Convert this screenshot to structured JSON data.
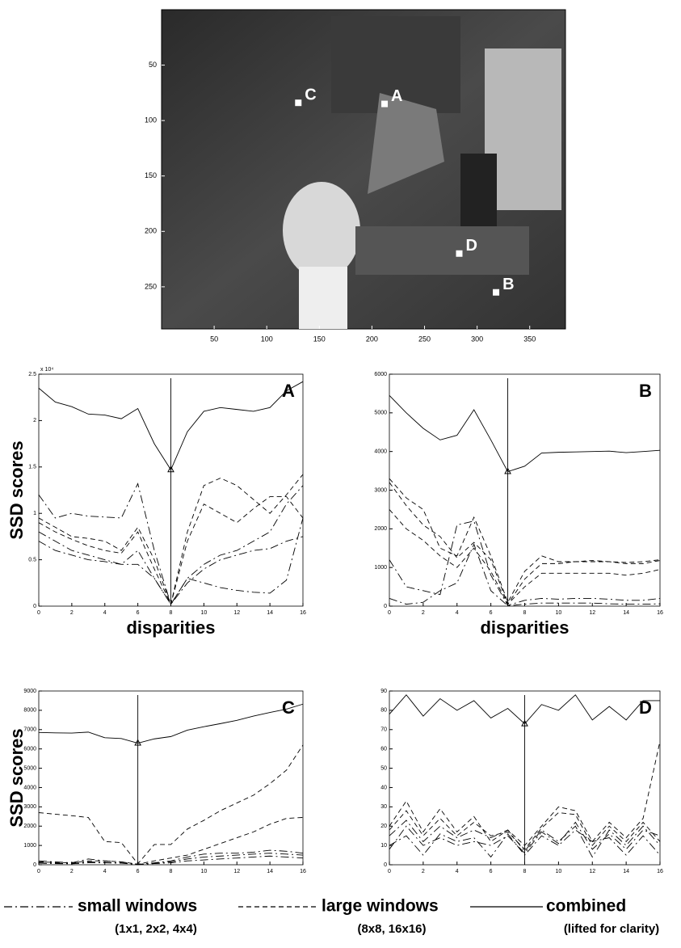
{
  "chart_data": [
    {
      "type": "image",
      "xlim": [
        0,
        384
      ],
      "ylim": [
        288,
        0
      ],
      "xticks": [
        50,
        100,
        150,
        200,
        250,
        300,
        350
      ],
      "yticks": [
        50,
        100,
        150,
        200,
        250
      ],
      "points": {
        "labels": [
          "C",
          "A",
          "D",
          "B"
        ],
        "x": [
          130,
          212,
          283,
          318
        ],
        "y": [
          84,
          85,
          220,
          255
        ]
      }
    },
    {
      "type": "line",
      "panel_label": "A",
      "y_label": "SSD scores",
      "x_label": "disparities",
      "scale_label": "x 10⁴",
      "xlim": [
        0,
        16
      ],
      "xticks": [
        0,
        2,
        4,
        6,
        8,
        10,
        12,
        14,
        16
      ],
      "ylim": [
        0,
        2.5
      ],
      "yticks": [
        0,
        0.5,
        1,
        1.5,
        2,
        2.5
      ],
      "selected_x": 8,
      "x": [
        0,
        1,
        2,
        3,
        4,
        5,
        6,
        7,
        8,
        9,
        10,
        11,
        12,
        13,
        14,
        15,
        16
      ],
      "series": [
        {
          "style": "solid",
          "values": [
            2.35,
            2.2,
            2.15,
            2.07,
            2.06,
            2.02,
            2.13,
            1.75,
            1.47,
            1.88,
            2.1,
            2.14,
            2.12,
            2.1,
            2.14,
            2.32,
            2.42
          ]
        },
        {
          "style": "dashed",
          "values": [
            0.95,
            0.85,
            0.75,
            0.73,
            0.7,
            0.6,
            0.85,
            0.5,
            0.02,
            0.8,
            1.3,
            1.38,
            1.3,
            1.15,
            1.0,
            1.2,
            1.42
          ]
        },
        {
          "style": "dashed",
          "values": [
            0.9,
            0.8,
            0.72,
            0.65,
            0.6,
            0.57,
            0.8,
            0.4,
            0.02,
            0.7,
            1.1,
            1.0,
            0.9,
            1.05,
            1.18,
            1.18,
            0.95
          ]
        },
        {
          "style": "dashdot",
          "values": [
            1.2,
            0.95,
            1.0,
            0.97,
            0.96,
            0.95,
            1.32,
            0.6,
            0.02,
            0.3,
            0.25,
            0.2,
            0.17,
            0.15,
            0.14,
            0.28,
            0.95
          ]
        },
        {
          "style": "dashdot",
          "values": [
            0.8,
            0.7,
            0.6,
            0.55,
            0.5,
            0.45,
            0.6,
            0.3,
            0.02,
            0.3,
            0.45,
            0.55,
            0.6,
            0.7,
            0.8,
            1.1,
            1.3
          ]
        },
        {
          "style": "dashdot",
          "values": [
            0.7,
            0.6,
            0.55,
            0.5,
            0.48,
            0.45,
            0.45,
            0.3,
            0.02,
            0.25,
            0.4,
            0.5,
            0.55,
            0.6,
            0.62,
            0.7,
            0.75
          ]
        }
      ]
    },
    {
      "type": "line",
      "panel_label": "B",
      "x_label": "disparities",
      "xlim": [
        0,
        16
      ],
      "xticks": [
        0,
        2,
        4,
        6,
        8,
        10,
        12,
        14,
        16
      ],
      "ylim": [
        0,
        6000
      ],
      "yticks": [
        0,
        1000,
        2000,
        3000,
        4000,
        5000,
        6000
      ],
      "selected_x": 7,
      "x": [
        0,
        1,
        2,
        3,
        4,
        5,
        6,
        7,
        8,
        9,
        10,
        11,
        12,
        13,
        14,
        15,
        16
      ],
      "series": [
        {
          "style": "solid",
          "values": [
            5450,
            5000,
            4600,
            4300,
            4420,
            5080,
            4300,
            3480,
            3620,
            3960,
            3980,
            3990,
            4000,
            4010,
            3970,
            4000,
            4030
          ]
        },
        {
          "style": "dashed",
          "values": [
            3300,
            2800,
            2500,
            1500,
            1300,
            2300,
            1300,
            100,
            900,
            1300,
            1150,
            1150,
            1180,
            1150,
            1130,
            1150,
            1200
          ]
        },
        {
          "style": "dashed",
          "values": [
            3200,
            2600,
            2100,
            1800,
            1250,
            1650,
            1200,
            50,
            700,
            1100,
            1100,
            1150,
            1150,
            1150,
            1100,
            1100,
            1180
          ]
        },
        {
          "style": "dashed",
          "values": [
            2500,
            2000,
            1700,
            1300,
            1000,
            1500,
            900,
            50,
            500,
            850,
            850,
            850,
            850,
            850,
            800,
            850,
            950
          ]
        },
        {
          "style": "dashdot",
          "values": [
            1200,
            500,
            400,
            300,
            2100,
            2200,
            800,
            20,
            150,
            200,
            180,
            200,
            200,
            180,
            150,
            150,
            200
          ]
        },
        {
          "style": "dashdot",
          "values": [
            200,
            50,
            100,
            400,
            600,
            1600,
            400,
            10,
            50,
            80,
            80,
            80,
            80,
            60,
            50,
            50,
            60
          ]
        }
      ]
    },
    {
      "type": "line",
      "panel_label": "C",
      "y_label": "SSD scores",
      "xlim": [
        0,
        16
      ],
      "xticks": [
        0,
        2,
        4,
        6,
        8,
        10,
        12,
        14,
        16
      ],
      "ylim": [
        0,
        9000
      ],
      "yticks": [
        0,
        1000,
        2000,
        3000,
        4000,
        5000,
        6000,
        7000,
        8000,
        9000
      ],
      "selected_x": 6,
      "x": [
        0,
        1,
        2,
        3,
        4,
        5,
        6,
        7,
        8,
        9,
        10,
        11,
        12,
        13,
        14,
        15,
        16
      ],
      "series": [
        {
          "style": "solid",
          "values": [
            6850,
            6830,
            6820,
            6870,
            6580,
            6540,
            6300,
            6520,
            6640,
            6970,
            7150,
            7310,
            7480,
            7700,
            7890,
            8060,
            8320
          ]
        },
        {
          "style": "dashed",
          "values": [
            2700,
            2620,
            2540,
            2450,
            1200,
            1150,
            50,
            1050,
            1050,
            1850,
            2300,
            2800,
            3200,
            3600,
            4200,
            4900,
            6200
          ]
        },
        {
          "style": "dashed",
          "values": [
            150,
            120,
            100,
            200,
            200,
            150,
            30,
            200,
            350,
            500,
            800,
            1100,
            1400,
            1700,
            2100,
            2400,
            2450
          ]
        },
        {
          "style": "dashdot",
          "values": [
            200,
            150,
            100,
            300,
            200,
            150,
            20,
            100,
            200,
            400,
            550,
            600,
            600,
            650,
            750,
            700,
            600
          ]
        },
        {
          "style": "dashdot",
          "values": [
            100,
            80,
            70,
            150,
            120,
            100,
            10,
            80,
            150,
            300,
            400,
            450,
            500,
            550,
            600,
            550,
            500
          ]
        },
        {
          "style": "dashdot",
          "values": [
            80,
            60,
            50,
            100,
            100,
            80,
            10,
            60,
            100,
            200,
            250,
            300,
            350,
            400,
            450,
            400,
            350
          ]
        }
      ]
    },
    {
      "type": "line",
      "panel_label": "D",
      "xlim": [
        0,
        16
      ],
      "xticks": [
        0,
        2,
        4,
        6,
        8,
        10,
        12,
        14,
        16
      ],
      "ylim": [
        0,
        90
      ],
      "yticks": [
        0,
        10,
        20,
        30,
        40,
        50,
        60,
        70,
        80,
        90
      ],
      "selected_x": 8,
      "x": [
        0,
        1,
        2,
        3,
        4,
        5,
        6,
        7,
        8,
        9,
        10,
        11,
        12,
        13,
        14,
        15,
        16
      ],
      "series": [
        {
          "style": "solid",
          "values": [
            78,
            88,
            77,
            86,
            80,
            85,
            76,
            81,
            73,
            83,
            80,
            88,
            75,
            82,
            75,
            85,
            85
          ]
        },
        {
          "style": "dashed",
          "values": [
            20,
            33,
            17,
            29,
            17,
            25,
            12,
            18,
            10,
            20,
            30,
            28,
            12,
            22,
            14,
            24,
            64
          ]
        },
        {
          "style": "dashed",
          "values": [
            18,
            28,
            15,
            24,
            15,
            22,
            15,
            17,
            8,
            19,
            27,
            26,
            10,
            20,
            12,
            22,
            12
          ]
        },
        {
          "style": "dashdot",
          "values": [
            15,
            23,
            12,
            20,
            14,
            18,
            14,
            18,
            7,
            18,
            12,
            20,
            4,
            18,
            10,
            20,
            10
          ]
        },
        {
          "style": "dashdot",
          "values": [
            10,
            15,
            5,
            16,
            12,
            14,
            4,
            16,
            5,
            15,
            10,
            18,
            12,
            14,
            5,
            15,
            5
          ]
        },
        {
          "style": "dashdot",
          "values": [
            8,
            20,
            10,
            14,
            10,
            12,
            10,
            15,
            6,
            17,
            11,
            22,
            8,
            16,
            8,
            18,
            15
          ]
        }
      ]
    }
  ],
  "legend": [
    {
      "label": "small windows",
      "detail": "(1x1, 2x2, 4x4)",
      "style": "dashdot"
    },
    {
      "label": "large windows",
      "detail": "(8x8, 16x16)",
      "style": "dashed"
    },
    {
      "label": "combined",
      "detail": "(lifted for clarity)",
      "style": "solid"
    }
  ]
}
